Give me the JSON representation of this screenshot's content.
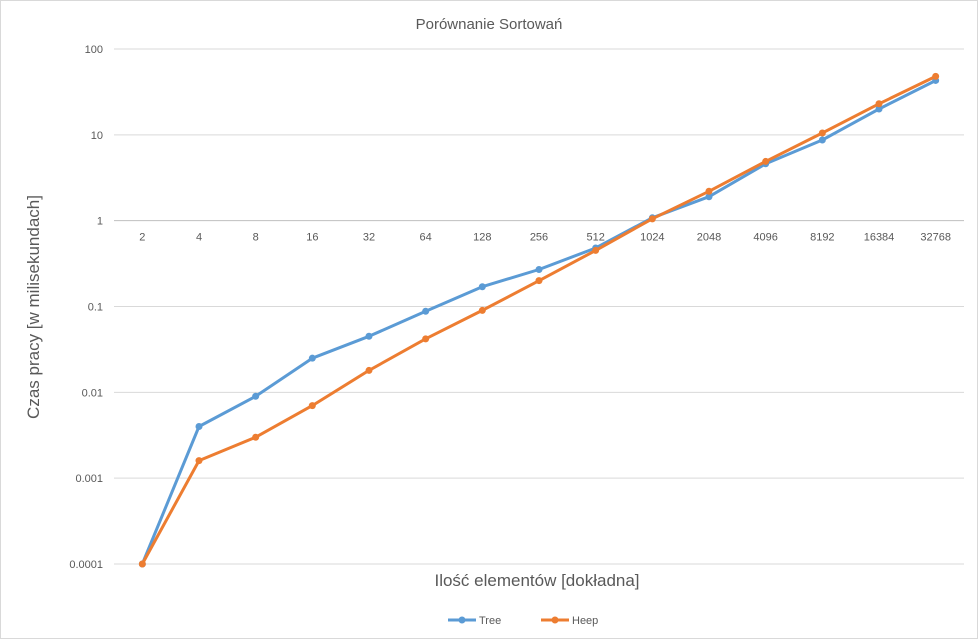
{
  "chart_data": {
    "type": "line",
    "title": "Porównanie Sortowań",
    "xlabel": "Ilość elementów [dokładna]",
    "ylabel": "Czas pracy [w milisekundach]",
    "y_scale": "log",
    "ylim": [
      0.0001,
      100
    ],
    "y_ticks": [
      "0.0001",
      "0.001",
      "0.01",
      "0.1",
      "1",
      "10",
      "100"
    ],
    "x_axis_crosses_at": 1,
    "grid": true,
    "legend_position": "bottom",
    "categories": [
      "2",
      "4",
      "8",
      "16",
      "32",
      "64",
      "128",
      "256",
      "512",
      "1024",
      "2048",
      "4096",
      "8192",
      "16384",
      "32768"
    ],
    "series": [
      {
        "name": "Tree",
        "color": "#5b9bd5",
        "values": [
          0.0001,
          0.004,
          0.009,
          0.025,
          0.045,
          0.088,
          0.17,
          0.27,
          0.48,
          1.08,
          1.9,
          4.6,
          8.7,
          20,
          43
        ]
      },
      {
        "name": "Heep",
        "color": "#ed7d31",
        "values": [
          0.0001,
          0.0016,
          0.003,
          0.007,
          0.018,
          0.042,
          0.09,
          0.2,
          0.45,
          1.05,
          2.2,
          4.9,
          10.5,
          23,
          48
        ]
      }
    ]
  }
}
